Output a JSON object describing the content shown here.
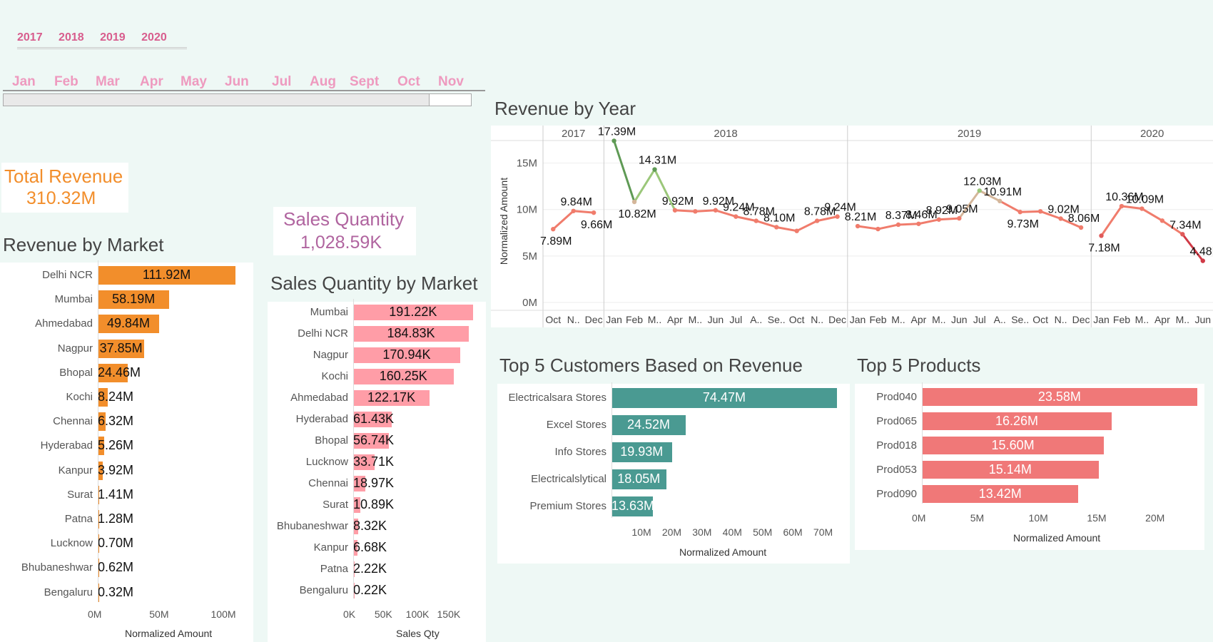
{
  "colors": {
    "orange": "#f28e2b",
    "pink": "#ff9da7",
    "teal": "#4a9a92",
    "salmon": "#f07878"
  },
  "filters": {
    "years": [
      "2017",
      "2018",
      "2019",
      "2020"
    ],
    "months": [
      "Jan",
      "Feb",
      "Mar",
      "Apr",
      "May",
      "Jun",
      "Jul",
      "Aug",
      "Sept",
      "Oct",
      "Nov"
    ],
    "slider_fill": 0.91
  },
  "kpis": {
    "total_revenue": {
      "label": "Total Revenue",
      "value": "310.32M"
    },
    "sales_quantity": {
      "label": "Sales Quantity",
      "value": "1,028.59K"
    }
  },
  "charts": {
    "revenue_by_market": {
      "title": "Revenue by Market",
      "axis_title": "Normalized Amount",
      "ticks": [
        "0M",
        "50M",
        "100M"
      ]
    },
    "sales_qty_by_market": {
      "title": "Sales Quantity by Market",
      "axis_title": "Sales Qty",
      "ticks": [
        "0K",
        "50K",
        "100K",
        "150K"
      ]
    },
    "revenue_by_year": {
      "title": "Revenue by Year",
      "y_title": "Normalized Amount",
      "y_ticks": [
        "0M",
        "5M",
        "10M",
        "15M"
      ]
    },
    "top_customers": {
      "title": "Top 5 Customers Based on Revenue",
      "axis_title": "Normalized Amount",
      "ticks": [
        "10M",
        "20M",
        "30M",
        "40M",
        "50M",
        "60M",
        "70M"
      ]
    },
    "top_products": {
      "title": "Top 5 Products",
      "axis_title": "Normalized Amount",
      "ticks": [
        "0M",
        "5M",
        "10M",
        "15M",
        "20M"
      ]
    }
  },
  "chart_data": [
    {
      "type": "bar",
      "id": "revenue_by_market",
      "title": "Revenue by Market",
      "xlabel": "Normalized Amount",
      "xlim": [
        0,
        120
      ],
      "categories": [
        "Delhi NCR",
        "Mumbai",
        "Ahmedabad",
        "Nagpur",
        "Bhopal",
        "Kochi",
        "Chennai",
        "Hyderabad",
        "Kanpur",
        "Surat",
        "Patna",
        "Lucknow",
        "Bhubaneshwar",
        "Bengaluru"
      ],
      "values": [
        111.92,
        58.19,
        49.84,
        37.85,
        24.46,
        8.24,
        6.32,
        5.26,
        3.92,
        1.41,
        1.28,
        0.7,
        0.62,
        0.32
      ],
      "labels": [
        "111.92M",
        "58.19M",
        "49.84M",
        "37.85M",
        "24.46M",
        "8.24M",
        "6.32M",
        "5.26M",
        "3.92M",
        "1.41M",
        "1.28M",
        "0.70M",
        "0.62M",
        "0.32M"
      ]
    },
    {
      "type": "bar",
      "id": "sales_qty_by_market",
      "title": "Sales Quantity by Market",
      "xlabel": "Sales Qty",
      "xlim": [
        0,
        200
      ],
      "categories": [
        "Mumbai",
        "Delhi NCR",
        "Nagpur",
        "Kochi",
        "Ahmedabad",
        "Hyderabad",
        "Bhopal",
        "Lucknow",
        "Chennai",
        "Surat",
        "Bhubaneshwar",
        "Kanpur",
        "Patna",
        "Bengaluru"
      ],
      "values": [
        191.22,
        184.83,
        170.94,
        160.25,
        122.17,
        61.43,
        56.74,
        33.71,
        18.97,
        10.89,
        8.32,
        6.68,
        2.22,
        0.22
      ],
      "labels": [
        "191.22K",
        "184.83K",
        "170.94K",
        "160.25K",
        "122.17K",
        "61.43K",
        "56.74K",
        "33.71K",
        "18.97K",
        "10.89K",
        "8.32K",
        "6.68K",
        "2.22K",
        "0.22K"
      ]
    },
    {
      "type": "line",
      "id": "revenue_by_year",
      "title": "Revenue by Year",
      "ylabel": "Normalized Amount",
      "ylim": [
        0,
        17.5
      ],
      "years": [
        "2017",
        "2018",
        "2019",
        "2020"
      ],
      "x": [
        "Oct",
        "N..",
        "Dec",
        "Jan",
        "Feb",
        "M..",
        "Apr",
        "M..",
        "Jun",
        "Jul",
        "A..",
        "Se..",
        "Oct",
        "N..",
        "Dec",
        "Jan",
        "Feb",
        "M..",
        "Apr",
        "M..",
        "Jun",
        "Jul",
        "A..",
        "Se..",
        "Oct",
        "N..",
        "Dec",
        "Jan",
        "Feb",
        "M..",
        "Apr",
        "M..",
        "Jun"
      ],
      "y": [
        7.89,
        9.84,
        9.66,
        17.39,
        10.82,
        14.31,
        9.92,
        9.8,
        9.92,
        9.24,
        8.78,
        8.1,
        7.7,
        8.78,
        9.24,
        8.21,
        7.9,
        8.37,
        8.46,
        8.92,
        9.05,
        12.03,
        10.91,
        9.73,
        9.8,
        9.02,
        8.06,
        7.18,
        10.36,
        10.09,
        8.8,
        7.34,
        4.48
      ],
      "labels": [
        "7.89M",
        "9.84M",
        "9.66M",
        "17.39M",
        "10.82M",
        "14.31M",
        "9.92M",
        "",
        "9.92M",
        "9.24M",
        "8.78M",
        "8.10M",
        "",
        "8.78M",
        "9.24M",
        "8.21M",
        "",
        "8.37M",
        "8.46M",
        "8.92M",
        "9.05M",
        "12.03M",
        "10.91M",
        "9.73M",
        "",
        "9.02M",
        "8.06M",
        "7.18M",
        "10.36M",
        "10.09M",
        "",
        "7.34M",
        "4.48M"
      ]
    },
    {
      "type": "bar",
      "id": "top_customers",
      "title": "Top 5 Customers Based on Revenue",
      "xlabel": "Normalized Amount",
      "xlim": [
        0,
        74.5
      ],
      "categories": [
        "Electricalsara Stores",
        "Excel Stores",
        "Info Stores",
        "Electricalslytical",
        "Premium Stores"
      ],
      "values": [
        74.47,
        24.52,
        19.93,
        18.05,
        13.63
      ],
      "labels": [
        "74.47M",
        "24.52M",
        "19.93M",
        "18.05M",
        "13.63M"
      ]
    },
    {
      "type": "bar",
      "id": "top_products",
      "title": "Top 5 Products",
      "xlabel": "Normalized Amount",
      "xlim": [
        0,
        23.6
      ],
      "categories": [
        "Prod040",
        "Prod065",
        "Prod018",
        "Prod053",
        "Prod090"
      ],
      "values": [
        23.58,
        16.26,
        15.6,
        15.14,
        13.42
      ],
      "labels": [
        "23.58M",
        "16.26M",
        "15.60M",
        "15.14M",
        "13.42M"
      ]
    }
  ]
}
